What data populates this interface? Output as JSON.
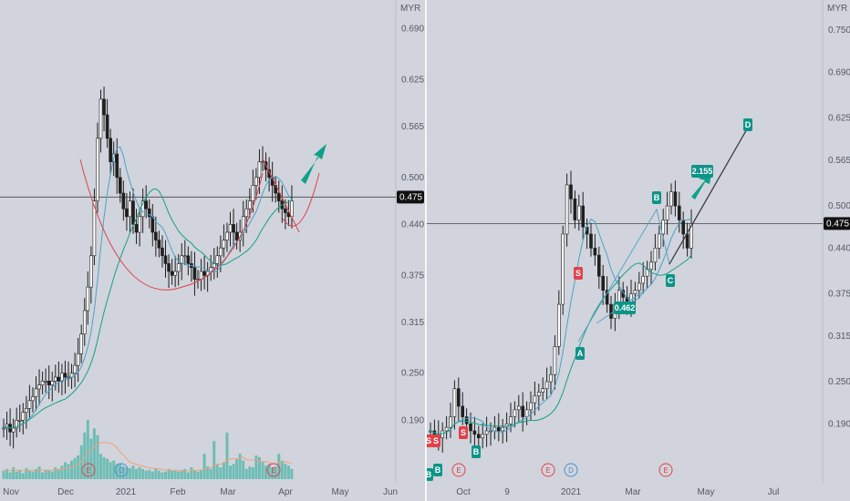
{
  "colors": {
    "background": "#d1d4dc",
    "candle": "#1f1f1f",
    "ma_fast": "#4aa3c7",
    "ma_slow": "#16a085",
    "volume": "#5cb8ae",
    "volume_ma": "#f0a07a",
    "trend_red": "#e0414b",
    "arrow": "#10a08a",
    "badge_green": "#0d9488",
    "badge_red": "#e0414b",
    "event_red": "#e0414b",
    "event_blue": "#4a8fd1",
    "price_line": "#444444",
    "price_label_bg": "#111111",
    "pattern_line": "#5aa3c7",
    "projection_line": "#333333"
  },
  "chart_data": [
    {
      "type": "candlestick",
      "currency": "MYR",
      "current_price": "0.475",
      "y_ticks": [
        "0.690",
        "0.625",
        "0.565",
        "0.500",
        "0.440",
        "0.375",
        "0.315",
        "0.250",
        "0.190"
      ],
      "x_ticks": [
        "Nov",
        "Dec",
        "2021",
        "Feb",
        "Mar",
        "Apr",
        "May",
        "Jun"
      ],
      "ylim": [
        0.145,
        0.715
      ],
      "closes": [
        0.18,
        0.185,
        0.175,
        0.18,
        0.19,
        0.19,
        0.2,
        0.205,
        0.215,
        0.22,
        0.23,
        0.235,
        0.24,
        0.24,
        0.235,
        0.24,
        0.245,
        0.24,
        0.25,
        0.245,
        0.245,
        0.25,
        0.26,
        0.275,
        0.3,
        0.33,
        0.36,
        0.4,
        0.47,
        0.55,
        0.6,
        0.58,
        0.55,
        0.52,
        0.53,
        0.5,
        0.48,
        0.46,
        0.45,
        0.47,
        0.44,
        0.43,
        0.45,
        0.47,
        0.46,
        0.45,
        0.43,
        0.42,
        0.41,
        0.4,
        0.39,
        0.38,
        0.375,
        0.38,
        0.39,
        0.4,
        0.4,
        0.39,
        0.385,
        0.37,
        0.37,
        0.38,
        0.375,
        0.38,
        0.385,
        0.39,
        0.4,
        0.41,
        0.42,
        0.43,
        0.44,
        0.43,
        0.42,
        0.43,
        0.45,
        0.46,
        0.47,
        0.49,
        0.5,
        0.52,
        0.52,
        0.51,
        0.5,
        0.49,
        0.48,
        0.47,
        0.46,
        0.455,
        0.45,
        0.47
      ],
      "volume": [
        10,
        12,
        8,
        14,
        9,
        11,
        7,
        13,
        10,
        9,
        12,
        15,
        8,
        10,
        11,
        9,
        14,
        12,
        16,
        20,
        18,
        22,
        25,
        28,
        40,
        55,
        70,
        48,
        60,
        52,
        30,
        26,
        24,
        20,
        22,
        18,
        19,
        15,
        14,
        13,
        16,
        12,
        14,
        12,
        10,
        11,
        9,
        13,
        10,
        8,
        9,
        12,
        10,
        11,
        9,
        10,
        12,
        8,
        14,
        10,
        9,
        11,
        30,
        15,
        12,
        45,
        18,
        14,
        20,
        55,
        16,
        18,
        24,
        30,
        22,
        12,
        15,
        14,
        28,
        26,
        20,
        16,
        18,
        14,
        15,
        30,
        22,
        18,
        16,
        12
      ],
      "events": [
        "E",
        "D",
        "E"
      ]
    },
    {
      "type": "candlestick",
      "currency": "MYR",
      "current_price": "0.475",
      "y_ticks": [
        "0.750",
        "0.690",
        "0.625",
        "0.565",
        "0.500",
        "0.440",
        "0.375",
        "0.315",
        "0.250",
        "0.190"
      ],
      "x_ticks": [
        "Oct",
        "9",
        "2021",
        "Mar",
        "May",
        "Jul"
      ],
      "ylim": [
        0.145,
        0.78
      ],
      "closes": [
        0.18,
        0.175,
        0.17,
        0.18,
        0.185,
        0.2,
        0.24,
        0.215,
        0.2,
        0.19,
        0.18,
        0.175,
        0.17,
        0.175,
        0.18,
        0.18,
        0.185,
        0.18,
        0.185,
        0.19,
        0.2,
        0.21,
        0.215,
        0.2,
        0.21,
        0.22,
        0.23,
        0.235,
        0.24,
        0.25,
        0.26,
        0.3,
        0.36,
        0.46,
        0.53,
        0.51,
        0.48,
        0.5,
        0.47,
        0.46,
        0.44,
        0.43,
        0.4,
        0.38,
        0.36,
        0.34,
        0.36,
        0.38,
        0.37,
        0.36,
        0.375,
        0.38,
        0.39,
        0.4,
        0.41,
        0.42,
        0.44,
        0.46,
        0.48,
        0.5,
        0.52,
        0.5,
        0.48,
        0.46,
        0.44,
        0.475
      ],
      "events": [
        "E",
        "E",
        "D",
        "E"
      ],
      "signals": [
        "S",
        "S",
        "S",
        "S",
        "B",
        "B",
        "B"
      ],
      "pattern_labels": [
        "A",
        "B",
        "C",
        "D"
      ],
      "value_labels": [
        "0.462",
        "2.155"
      ]
    }
  ]
}
